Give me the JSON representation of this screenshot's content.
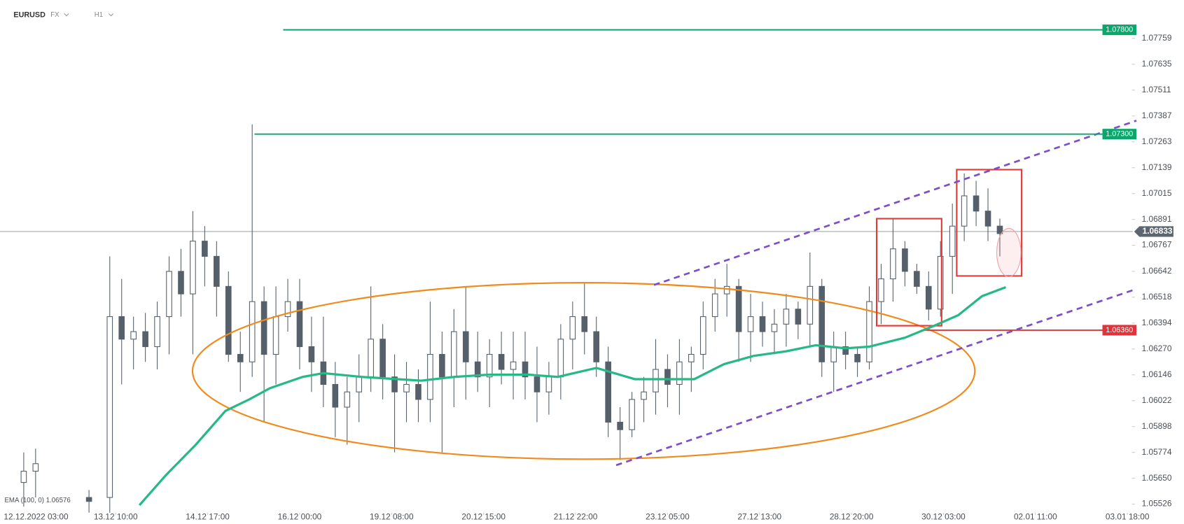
{
  "chart_data": {
    "type": "candlestick",
    "symbol": "EURUSD",
    "market": "FX",
    "timeframe": "H1",
    "indicator_label": "EMA (100, 0) 1.06576",
    "xlim": [
      -8,
      373
    ],
    "ylim": [
      1.05485,
      1.07943
    ],
    "xticks": [
      {
        "value": 0,
        "label": "12.12.2022 03:00"
      },
      {
        "value": 31,
        "label": "13.12 10:00"
      },
      {
        "value": 62,
        "label": "14.12 17:00"
      },
      {
        "value": 93,
        "label": "16.12 00:00"
      },
      {
        "value": 124,
        "label": "19.12 08:00"
      },
      {
        "value": 155,
        "label": "20.12 15:00"
      },
      {
        "value": 186,
        "label": "21.12 22:00"
      },
      {
        "value": 217,
        "label": "23.12 05:00"
      },
      {
        "value": 248,
        "label": "27.12 13:00"
      },
      {
        "value": 279,
        "label": "28.12 20:00"
      },
      {
        "value": 310,
        "label": "30.12 03:00"
      },
      {
        "value": 341,
        "label": "02.01 11:00"
      },
      {
        "value": 372,
        "label": "03.01 18:00"
      }
    ],
    "yticks": [
      1.07759,
      1.07635,
      1.07511,
      1.07387,
      {
        "value": 1.07263,
        "label": "1.07263"
      },
      1.07139,
      1.07015,
      1.06891,
      1.06767,
      1.06642,
      1.06518,
      1.06394,
      {
        "value": 1.0627,
        "label": "1.06270"
      },
      1.06146,
      1.06022,
      1.05898,
      1.05774,
      {
        "value": 1.0565,
        "label": "1.05650"
      },
      1.05526
    ],
    "candles": {
      "up_color": "#ffffff",
      "down_color": "#56606b",
      "edge_color": "#56606b",
      "x": [
        0,
        4,
        22,
        29,
        33,
        37,
        41,
        45,
        49,
        53,
        57,
        61,
        65,
        69,
        73,
        77,
        81,
        85,
        89,
        93,
        97,
        101,
        105,
        109,
        113,
        117,
        121,
        125,
        129,
        133,
        137,
        141,
        145,
        149,
        153,
        157,
        161,
        165,
        169,
        173,
        177,
        181,
        185,
        189,
        193,
        197,
        201,
        205,
        209,
        213,
        217,
        221,
        225,
        229,
        233,
        237,
        241,
        245,
        249,
        253,
        257,
        261,
        265,
        269,
        273,
        277,
        281,
        285,
        289,
        293,
        297,
        301,
        305,
        309,
        313,
        317,
        321,
        325,
        329
      ],
      "open": [
        1.0563,
        1.05684,
        1.05558,
        1.05558,
        1.06425,
        1.06317,
        1.06353,
        1.06281,
        1.06425,
        1.06642,
        1.06534,
        1.06787,
        1.06714,
        1.0657,
        1.06244,
        1.06208,
        1.06497,
        1.06244,
        1.06425,
        1.06497,
        1.06281,
        1.06208,
        1.061,
        1.05991,
        1.06064,
        1.06136,
        1.06317,
        1.06136,
        1.06064,
        1.061,
        1.06028,
        1.06244,
        1.06136,
        1.06353,
        1.06208,
        1.06136,
        1.06244,
        1.06172,
        1.06208,
        1.06136,
        1.06064,
        1.06136,
        1.06317,
        1.06425,
        1.06353,
        1.06208,
        1.05919,
        1.05883,
        1.06028,
        1.06064,
        1.06172,
        1.061,
        1.06208,
        1.06244,
        1.06425,
        1.06534,
        1.0657,
        1.06353,
        1.06425,
        1.06353,
        1.06389,
        1.06461,
        1.06389,
        1.0657,
        1.06208,
        1.06281,
        1.06244,
        1.06208,
        1.06497,
        1.06606,
        1.0675,
        1.06642,
        1.0657,
        1.06461,
        1.06714,
        1.06859,
        1.07004,
        1.06931,
        1.06859
      ],
      "high": [
        1.05774,
        1.05792,
        1.05594,
        1.06714,
        1.06606,
        1.06425,
        1.06443,
        1.06497,
        1.06714,
        1.0675,
        1.06931,
        1.06859,
        1.06787,
        1.06642,
        1.06353,
        1.07347,
        1.0657,
        1.0657,
        1.06606,
        1.06606,
        1.06425,
        1.06425,
        1.06208,
        1.06136,
        1.06244,
        1.0657,
        1.06389,
        1.06244,
        1.06208,
        1.06172,
        1.06497,
        1.06353,
        1.06461,
        1.0657,
        1.06353,
        1.06317,
        1.06353,
        1.06353,
        1.06353,
        1.06281,
        1.06208,
        1.06389,
        1.06497,
        1.06588,
        1.06425,
        1.06281,
        1.05991,
        1.06064,
        1.06136,
        1.06317,
        1.06244,
        1.06317,
        1.06281,
        1.06497,
        1.06606,
        1.06678,
        1.06606,
        1.06534,
        1.06497,
        1.06461,
        1.06534,
        1.06497,
        1.06732,
        1.06606,
        1.06353,
        1.06353,
        1.06281,
        1.0657,
        1.06678,
        1.06895,
        1.06787,
        1.06678,
        1.06642,
        1.06787,
        1.06967,
        1.07112,
        1.07076,
        1.0704,
        1.06895
      ],
      "low": [
        1.05514,
        1.05558,
        1.05485,
        1.05485,
        1.061,
        1.06172,
        1.06208,
        1.06172,
        1.06244,
        1.06425,
        1.06244,
        1.0657,
        1.06425,
        1.06208,
        1.06064,
        1.06136,
        1.05919,
        1.061,
        1.06353,
        1.06172,
        1.06064,
        1.05991,
        1.05847,
        1.05811,
        1.05919,
        1.06064,
        1.06028,
        1.05774,
        1.05919,
        1.05919,
        1.05919,
        1.05774,
        1.05991,
        1.06028,
        1.06064,
        1.05991,
        1.061,
        1.06028,
        1.06028,
        1.05919,
        1.05955,
        1.06028,
        1.06172,
        1.06244,
        1.06136,
        1.05847,
        1.05738,
        1.05847,
        1.05919,
        1.05955,
        1.05991,
        1.05955,
        1.06064,
        1.06172,
        1.06353,
        1.06425,
        1.06208,
        1.06208,
        1.06281,
        1.06244,
        1.06281,
        1.06317,
        1.06281,
        1.06136,
        1.06064,
        1.06172,
        1.06136,
        1.06172,
        1.06389,
        1.06497,
        1.0657,
        1.06534,
        1.06407,
        1.06425,
        1.06534,
        1.06787,
        1.06859,
        1.06787,
        1.06714
      ],
      "close": [
        1.05684,
        1.0572,
        1.05539,
        1.06425,
        1.06317,
        1.06353,
        1.06281,
        1.06425,
        1.06642,
        1.06534,
        1.06787,
        1.06714,
        1.0657,
        1.06244,
        1.06208,
        1.06497,
        1.06244,
        1.06425,
        1.06497,
        1.06281,
        1.06208,
        1.061,
        1.05991,
        1.06064,
        1.06136,
        1.06317,
        1.06136,
        1.06064,
        1.061,
        1.06028,
        1.06244,
        1.06136,
        1.06353,
        1.06208,
        1.06136,
        1.06244,
        1.06172,
        1.06208,
        1.06136,
        1.06064,
        1.06136,
        1.06317,
        1.06425,
        1.06353,
        1.06208,
        1.05919,
        1.05883,
        1.06028,
        1.06064,
        1.06172,
        1.061,
        1.06208,
        1.06244,
        1.06425,
        1.06534,
        1.0657,
        1.06353,
        1.06425,
        1.06353,
        1.06389,
        1.06461,
        1.06389,
        1.0657,
        1.06208,
        1.06281,
        1.06244,
        1.06208,
        1.06497,
        1.06606,
        1.0675,
        1.06642,
        1.0657,
        1.06461,
        1.06714,
        1.06859,
        1.07004,
        1.06931,
        1.06859,
        1.06823
      ]
    },
    "ema": {
      "color": "#27b985",
      "x": [
        39,
        48,
        58,
        68,
        76,
        83,
        94,
        101,
        114,
        134,
        145,
        157,
        170,
        180,
        193,
        206,
        216,
        226,
        236,
        246,
        257,
        267,
        277,
        285,
        297,
        307,
        315,
        323,
        331
      ],
      "values": [
        1.05521,
        1.05666,
        1.05811,
        1.05973,
        1.06028,
        1.06082,
        1.06136,
        1.06154,
        1.06136,
        1.06118,
        1.06136,
        1.06147,
        1.06147,
        1.06136,
        1.06179,
        1.06125,
        1.06125,
        1.06125,
        1.06197,
        1.06237,
        1.06259,
        1.06288,
        1.06273,
        1.06281,
        1.06324,
        1.06382,
        1.06432,
        1.06523,
        1.06566
      ]
    },
    "levels": [
      {
        "value": 1.078,
        "label": "1.07800",
        "color": "#0aa66c"
      },
      {
        "value": 1.073,
        "label": "1.07300",
        "color": "#0aa66c"
      },
      {
        "value": 1.0636,
        "label": "1.06360",
        "color": "#e0333a"
      }
    ],
    "last_price": 1.06833,
    "last_price_color": "#5c6670"
  }
}
